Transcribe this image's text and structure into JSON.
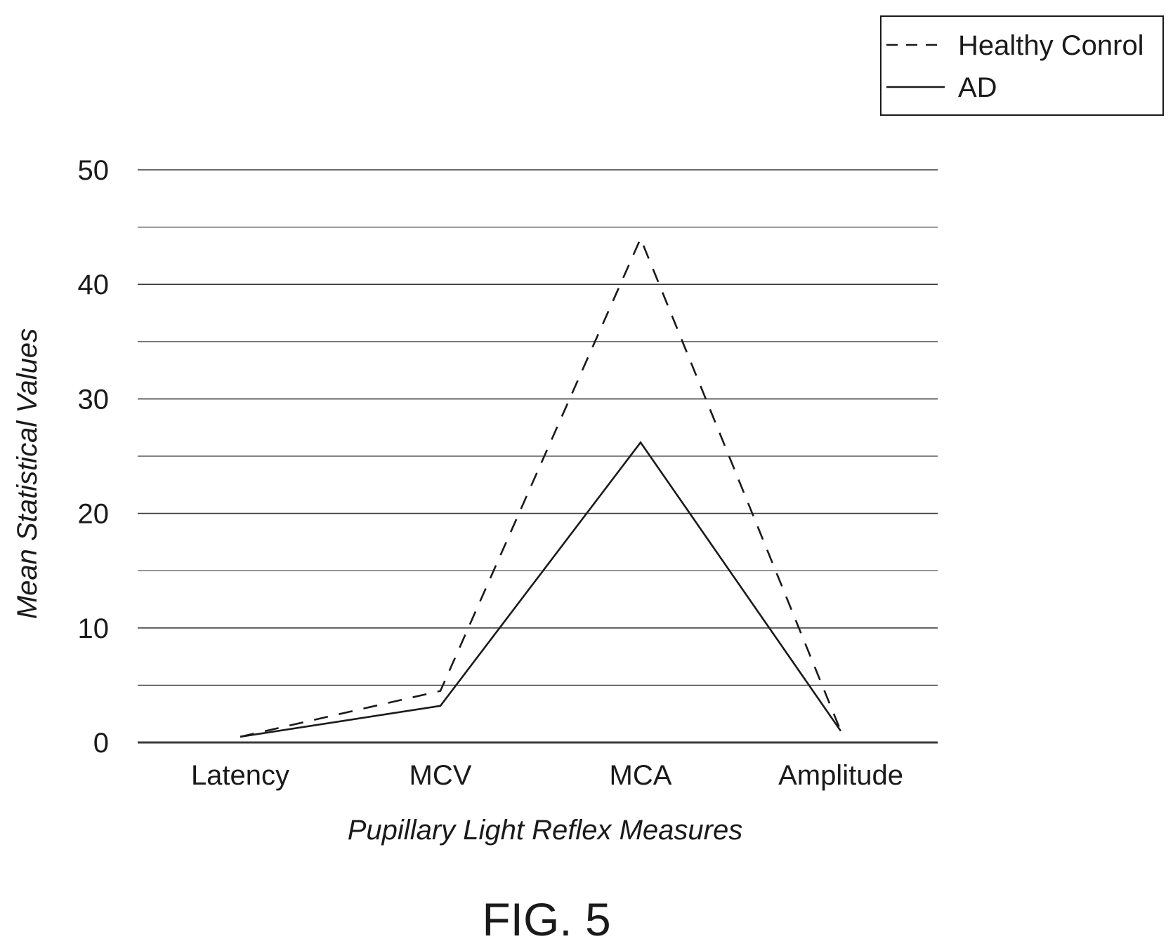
{
  "chart_data": {
    "type": "line",
    "categories": [
      "Latency",
      "MCV",
      "MCA",
      "Amplitude"
    ],
    "series": [
      {
        "name": "Healthy Conrol",
        "values": [
          0.5,
          4.5,
          44,
          1
        ],
        "line_style": "dashed"
      },
      {
        "name": "AD",
        "values": [
          0.5,
          3.2,
          26.2,
          1
        ],
        "line_style": "solid"
      }
    ],
    "xlabel": "Pupillary Light Reflex Measures",
    "ylabel": "Mean Statistical Values",
    "ylim": [
      0,
      50
    ],
    "yticks": [
      0,
      10,
      20,
      30,
      40,
      50
    ],
    "grid": true,
    "legend_position": "top-right"
  },
  "figure_label": "FIG. 5",
  "colors": {
    "ink": "#1a1a1a",
    "grid": "#3a3a3a",
    "background": "#ffffff"
  }
}
